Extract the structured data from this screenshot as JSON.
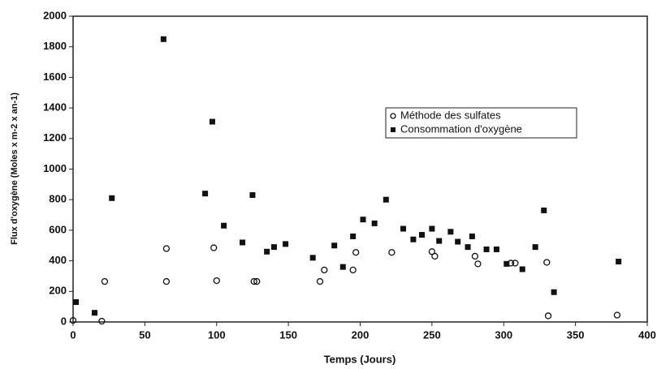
{
  "chart_data": {
    "type": "scatter",
    "xlabel": "Temps (Jours)",
    "ylabel": "Flux d'oxygène (Moles x m-2 x an-1)",
    "xlim": [
      0,
      400
    ],
    "xticks": [
      0,
      50,
      100,
      150,
      200,
      250,
      300,
      350,
      400
    ],
    "ylim": [
      0,
      2000
    ],
    "yticks": [
      0,
      200,
      400,
      600,
      800,
      1000,
      1200,
      1400,
      1600,
      1800,
      2000
    ],
    "legend": "upper right",
    "series": [
      {
        "name": "Méthode des sulfates",
        "color": "#111111",
        "marker": "circle",
        "x": [
          0,
          20,
          22,
          65,
          65,
          98,
          100,
          126,
          128,
          172,
          175,
          195,
          197,
          222,
          250,
          252,
          280,
          282,
          305,
          308,
          330,
          331,
          379
        ],
        "values": [
          10,
          5,
          265,
          480,
          265,
          485,
          270,
          265,
          265,
          265,
          340,
          340,
          455,
          455,
          460,
          430,
          430,
          380,
          385,
          385,
          390,
          40,
          45
        ]
      },
      {
        "name": "Consommation d'oxygène",
        "color": "#111111",
        "marker": "square",
        "x": [
          2,
          15,
          27,
          63,
          92,
          97,
          105,
          118,
          125,
          135,
          140,
          148,
          167,
          182,
          188,
          195,
          202,
          210,
          218,
          230,
          237,
          243,
          250,
          255,
          263,
          268,
          275,
          278,
          288,
          295,
          302,
          313,
          322,
          328,
          335,
          380
        ],
        "values": [
          130,
          60,
          810,
          1850,
          840,
          1310,
          630,
          520,
          830,
          460,
          490,
          510,
          420,
          500,
          360,
          560,
          670,
          645,
          800,
          610,
          540,
          570,
          610,
          530,
          590,
          525,
          490,
          560,
          475,
          475,
          380,
          345,
          490,
          730,
          195,
          395
        ]
      }
    ]
  }
}
